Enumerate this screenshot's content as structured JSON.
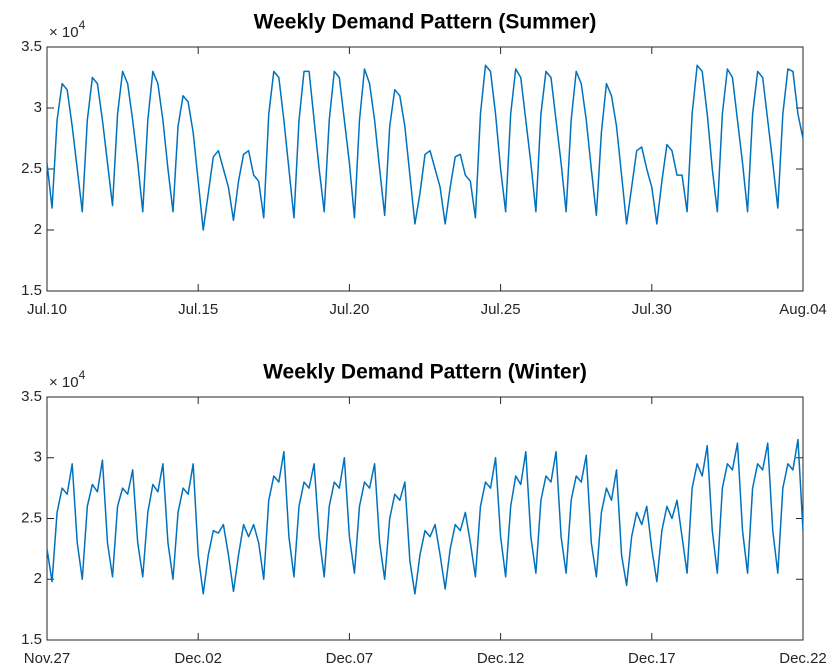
{
  "chart_data": [
    {
      "type": "line",
      "title": "Weekly Demand Pattern (Summer)",
      "y_multiplier": {
        "base": "× 10",
        "exponent": "4"
      },
      "xlim": [
        0,
        600
      ],
      "xticks": [
        {
          "value": 0,
          "label": "Jul.10"
        },
        {
          "value": 120,
          "label": "Jul.15"
        },
        {
          "value": 240,
          "label": "Jul.20"
        },
        {
          "value": 360,
          "label": "Jul.25"
        },
        {
          "value": 480,
          "label": "Jul.30"
        },
        {
          "value": 600,
          "label": "Aug.04"
        }
      ],
      "ylim": [
        1.5,
        3.5
      ],
      "yticks": [
        1.5,
        2,
        2.5,
        3,
        3.5
      ],
      "grid": false,
      "color": "#0072bd",
      "x": [
        0,
        4,
        8,
        12,
        16,
        20,
        24,
        28,
        32,
        36,
        40,
        44,
        48,
        52,
        56,
        60,
        64,
        68,
        72,
        76,
        80,
        84,
        88,
        92,
        96,
        100,
        104,
        108,
        112,
        116,
        120,
        124,
        128,
        132,
        136,
        140,
        144,
        148,
        152,
        156,
        160,
        164,
        168,
        172,
        176,
        180,
        184,
        188,
        192,
        196,
        200,
        204,
        208,
        212,
        216,
        220,
        224,
        228,
        232,
        236,
        240,
        244,
        248,
        252,
        256,
        260,
        264,
        268,
        272,
        276,
        280,
        284,
        288,
        292,
        296,
        300,
        304,
        308,
        312,
        316,
        320,
        324,
        328,
        332,
        336,
        340,
        344,
        348,
        352,
        356,
        360,
        364,
        368,
        372,
        376,
        380,
        384,
        388,
        392,
        396,
        400,
        404,
        408,
        412,
        416,
        420,
        424,
        428,
        432,
        436,
        440,
        444,
        448,
        452,
        456,
        460,
        464,
        468,
        472,
        476,
        480,
        484,
        488,
        492,
        496,
        500,
        504,
        508,
        512,
        516,
        520,
        524,
        528,
        532,
        536,
        540,
        544,
        548,
        552,
        556,
        560,
        564,
        568,
        572,
        576,
        580,
        584,
        588,
        592,
        596,
        600
      ],
      "values": [
        2.55,
        2.18,
        2.9,
        3.2,
        3.15,
        2.85,
        2.5,
        2.15,
        2.9,
        3.25,
        3.2,
        2.9,
        2.55,
        2.2,
        2.95,
        3.3,
        3.2,
        2.9,
        2.55,
        2.15,
        2.9,
        3.3,
        3.2,
        2.9,
        2.5,
        2.15,
        2.85,
        3.1,
        3.05,
        2.8,
        2.4,
        2.0,
        2.3,
        2.6,
        2.65,
        2.5,
        2.35,
        2.08,
        2.4,
        2.62,
        2.65,
        2.45,
        2.4,
        2.1,
        2.95,
        3.3,
        3.25,
        2.9,
        2.5,
        2.1,
        2.9,
        3.3,
        3.3,
        2.9,
        2.5,
        2.15,
        2.9,
        3.3,
        3.25,
        2.9,
        2.55,
        2.1,
        2.9,
        3.32,
        3.2,
        2.9,
        2.5,
        2.12,
        2.85,
        3.15,
        3.1,
        2.85,
        2.45,
        2.05,
        2.3,
        2.62,
        2.65,
        2.5,
        2.35,
        2.05,
        2.35,
        2.6,
        2.62,
        2.45,
        2.4,
        2.1,
        2.95,
        3.35,
        3.3,
        2.95,
        2.5,
        2.15,
        2.95,
        3.32,
        3.25,
        2.9,
        2.55,
        2.15,
        2.95,
        3.3,
        3.25,
        2.9,
        2.55,
        2.15,
        2.9,
        3.3,
        3.2,
        2.9,
        2.5,
        2.12,
        2.8,
        3.2,
        3.1,
        2.85,
        2.45,
        2.05,
        2.35,
        2.65,
        2.68,
        2.5,
        2.35,
        2.05,
        2.4,
        2.7,
        2.65,
        2.45,
        2.45,
        2.15,
        2.95,
        3.35,
        3.3,
        2.95,
        2.5,
        2.15,
        2.95,
        3.32,
        3.25,
        2.9,
        2.55,
        2.15,
        2.95,
        3.3,
        3.25,
        2.9,
        2.55,
        2.18,
        2.95,
        3.32,
        3.3,
        2.95,
        2.75
      ]
    },
    {
      "type": "line",
      "title": "Weekly Demand Pattern (Winter)",
      "y_multiplier": {
        "base": "× 10",
        "exponent": "4"
      },
      "xlim": [
        0,
        600
      ],
      "xticks": [
        {
          "value": 0,
          "label": "Nov.27"
        },
        {
          "value": 120,
          "label": "Dec.02"
        },
        {
          "value": 240,
          "label": "Dec.07"
        },
        {
          "value": 360,
          "label": "Dec.12"
        },
        {
          "value": 480,
          "label": "Dec.17"
        },
        {
          "value": 600,
          "label": "Dec.22"
        }
      ],
      "ylim": [
        1.5,
        3.5
      ],
      "yticks": [
        1.5,
        2,
        2.5,
        3,
        3.5
      ],
      "grid": false,
      "color": "#0072bd",
      "x": [
        0,
        4,
        8,
        12,
        16,
        20,
        24,
        28,
        32,
        36,
        40,
        44,
        48,
        52,
        56,
        60,
        64,
        68,
        72,
        76,
        80,
        84,
        88,
        92,
        96,
        100,
        104,
        108,
        112,
        116,
        120,
        124,
        128,
        132,
        136,
        140,
        144,
        148,
        152,
        156,
        160,
        164,
        168,
        172,
        176,
        180,
        184,
        188,
        192,
        196,
        200,
        204,
        208,
        212,
        216,
        220,
        224,
        228,
        232,
        236,
        240,
        244,
        248,
        252,
        256,
        260,
        264,
        268,
        272,
        276,
        280,
        284,
        288,
        292,
        296,
        300,
        304,
        308,
        312,
        316,
        320,
        324,
        328,
        332,
        336,
        340,
        344,
        348,
        352,
        356,
        360,
        364,
        368,
        372,
        376,
        380,
        384,
        388,
        392,
        396,
        400,
        404,
        408,
        412,
        416,
        420,
        424,
        428,
        432,
        436,
        440,
        444,
        448,
        452,
        456,
        460,
        464,
        468,
        472,
        476,
        480,
        484,
        488,
        492,
        496,
        500,
        504,
        508,
        512,
        516,
        520,
        524,
        528,
        532,
        536,
        540,
        544,
        548,
        552,
        556,
        560,
        564,
        568,
        572,
        576,
        580,
        584,
        588,
        592,
        596,
        600
      ],
      "values": [
        2.25,
        1.98,
        2.55,
        2.75,
        2.7,
        2.95,
        2.3,
        2.0,
        2.6,
        2.78,
        2.72,
        2.98,
        2.3,
        2.02,
        2.6,
        2.75,
        2.7,
        2.9,
        2.3,
        2.02,
        2.55,
        2.78,
        2.72,
        2.95,
        2.3,
        2.0,
        2.55,
        2.75,
        2.7,
        2.95,
        2.2,
        1.88,
        2.2,
        2.4,
        2.38,
        2.45,
        2.2,
        1.9,
        2.2,
        2.45,
        2.35,
        2.45,
        2.3,
        2.0,
        2.65,
        2.85,
        2.8,
        3.05,
        2.35,
        2.02,
        2.6,
        2.8,
        2.75,
        2.95,
        2.35,
        2.02,
        2.6,
        2.8,
        2.75,
        3.0,
        2.35,
        2.05,
        2.6,
        2.8,
        2.75,
        2.95,
        2.3,
        2.0,
        2.5,
        2.7,
        2.65,
        2.8,
        2.15,
        1.88,
        2.2,
        2.4,
        2.35,
        2.45,
        2.2,
        1.92,
        2.25,
        2.45,
        2.4,
        2.55,
        2.3,
        2.02,
        2.6,
        2.8,
        2.75,
        3.0,
        2.35,
        2.02,
        2.6,
        2.85,
        2.78,
        3.05,
        2.35,
        2.05,
        2.65,
        2.85,
        2.8,
        3.05,
        2.35,
        2.05,
        2.65,
        2.85,
        2.8,
        3.02,
        2.3,
        2.02,
        2.55,
        2.75,
        2.65,
        2.9,
        2.2,
        1.95,
        2.35,
        2.55,
        2.45,
        2.6,
        2.25,
        1.98,
        2.4,
        2.6,
        2.5,
        2.65,
        2.35,
        2.05,
        2.75,
        2.95,
        2.85,
        3.1,
        2.4,
        2.05,
        2.75,
        2.95,
        2.9,
        3.12,
        2.4,
        2.05,
        2.75,
        2.95,
        2.9,
        3.12,
        2.4,
        2.05,
        2.75,
        2.95,
        2.9,
        3.15,
        2.4
      ]
    }
  ]
}
